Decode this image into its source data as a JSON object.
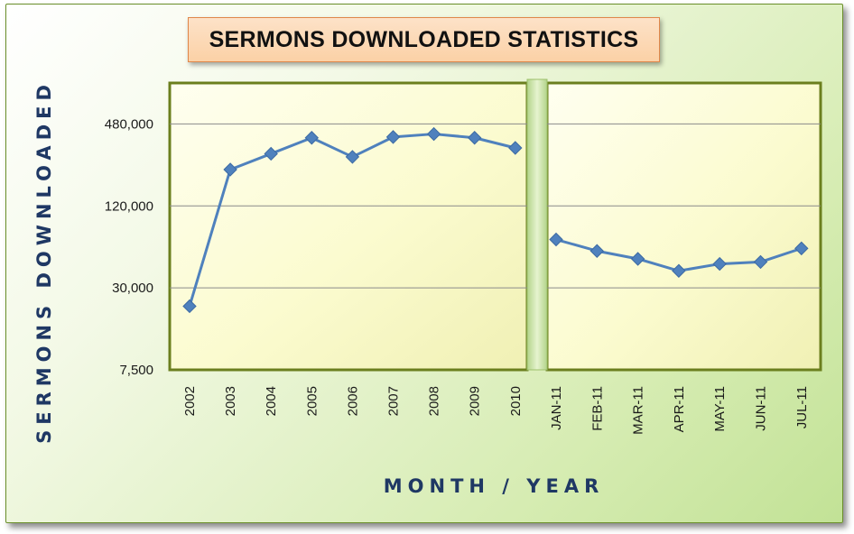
{
  "chart_data": {
    "type": "line",
    "title": "SERMONS DOWNLOADED STATISTICS",
    "xlabel": "MONTH / YEAR",
    "ylabel": "SERMONS DOWNLOADED",
    "yscale": "log",
    "ylim": [
      7500,
      960000
    ],
    "yticks": [
      7500,
      30000,
      120000,
      480000
    ],
    "ytick_labels": [
      "7,500",
      "30,000",
      "120,000",
      "480,000"
    ],
    "grid": true,
    "line_color": "#4f81bd",
    "marker": "diamond",
    "panels": [
      {
        "name": "",
        "categories": [
          "2002",
          "2003",
          "2004",
          "2005",
          "2006",
          "2007",
          "2008",
          "2009",
          "2010"
        ],
        "values": [
          22000,
          222000,
          290000,
          380000,
          275000,
          385000,
          405000,
          380000,
          320000
        ]
      },
      {
        "name": "",
        "categories": [
          "JAN-11",
          "FEB-11",
          "MAR-11",
          "APR-11",
          "MAY-11",
          "JUN-11",
          "JUL-11"
        ],
        "values": [
          68000,
          56000,
          49000,
          40000,
          45000,
          46500,
          58500
        ]
      }
    ]
  }
}
